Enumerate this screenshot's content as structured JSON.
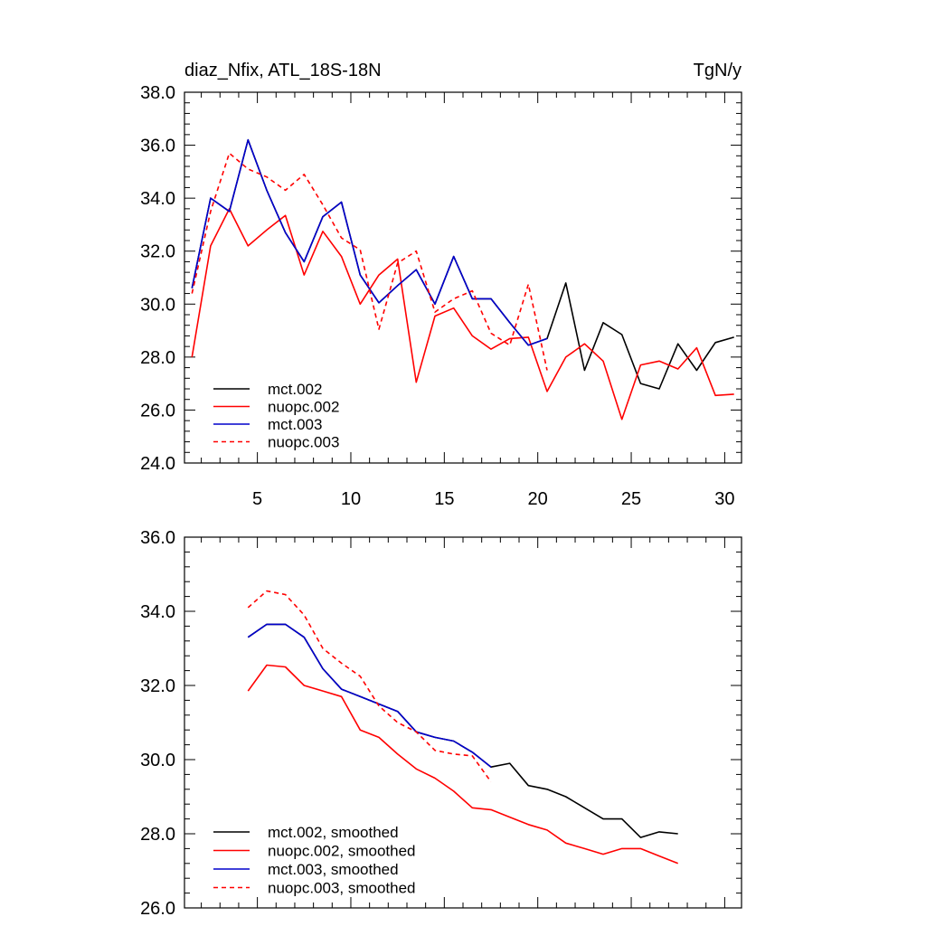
{
  "chart_data": [
    {
      "type": "line",
      "title": "diaz_Nfix, ATL_18S-18N",
      "units": "TgN/y",
      "xlim": [
        1.1,
        30.9
      ],
      "ylim": [
        24.0,
        38.0
      ],
      "xticks": [
        5,
        10,
        15,
        20,
        25,
        30
      ],
      "xtick_labels": [
        "5",
        "10",
        "15",
        "20",
        "25",
        "30"
      ],
      "yticks": [
        24,
        26,
        28,
        30,
        32,
        34,
        36,
        38
      ],
      "ytick_labels": [
        "24.0",
        "26.0",
        "28.0",
        "30.0",
        "32.0",
        "34.0",
        "36.0",
        "38.0"
      ],
      "legend_position": "bottom-left",
      "series": [
        {
          "name": "mct.002",
          "color": "#000000",
          "dash": "solid",
          "x": [
            1.5,
            2.5,
            3.5,
            4.5,
            5.5,
            6.5,
            7.5,
            8.5,
            9.5,
            10.5,
            11.5,
            12.5,
            13.5,
            14.5,
            15.5,
            16.5,
            17.5,
            18.5,
            19.5,
            20.5,
            21.5,
            22.5,
            23.5,
            24.5,
            25.5,
            26.5,
            27.5,
            28.5,
            29.5,
            30.5
          ],
          "values": [
            30.6,
            34.0,
            33.5,
            36.2,
            34.3,
            32.7,
            31.6,
            33.3,
            33.85,
            31.1,
            30.05,
            30.7,
            31.3,
            30.0,
            31.8,
            30.2,
            30.2,
            29.3,
            28.45,
            28.7,
            30.8,
            27.5,
            29.3,
            28.85,
            27.0,
            26.8,
            28.5,
            27.5,
            28.55,
            28.75
          ]
        },
        {
          "name": "nuopc.002",
          "color": "#ff0000",
          "dash": "solid",
          "x": [
            1.5,
            2.5,
            3.5,
            4.5,
            5.5,
            6.5,
            7.5,
            8.5,
            9.5,
            10.5,
            11.5,
            12.5,
            13.5,
            14.5,
            15.5,
            16.5,
            17.5,
            18.5,
            19.5,
            20.5,
            21.5,
            22.5,
            23.5,
            24.5,
            25.5,
            26.5,
            27.5,
            28.5,
            29.5,
            30.5
          ],
          "values": [
            28.0,
            32.2,
            33.6,
            32.2,
            32.8,
            33.35,
            31.1,
            32.75,
            31.8,
            30.0,
            31.1,
            31.7,
            27.05,
            29.55,
            29.85,
            28.8,
            28.3,
            28.7,
            28.75,
            26.7,
            28.0,
            28.5,
            27.85,
            25.65,
            27.7,
            27.85,
            27.55,
            28.35,
            26.55,
            26.6
          ]
        },
        {
          "name": "mct.003",
          "color": "#0000cc",
          "dash": "solid",
          "x": [
            1.5,
            2.5,
            3.5,
            4.5,
            5.5,
            6.5,
            7.5,
            8.5,
            9.5,
            10.5,
            11.5,
            12.5,
            13.5,
            14.5,
            15.5,
            16.5,
            17.5,
            18.5,
            19.5,
            20.5
          ],
          "values": [
            30.6,
            34.0,
            33.5,
            36.2,
            34.3,
            32.7,
            31.6,
            33.3,
            33.85,
            31.1,
            30.05,
            30.7,
            31.3,
            30.0,
            31.8,
            30.2,
            30.2,
            29.3,
            28.45,
            28.7
          ]
        },
        {
          "name": "nuopc.003",
          "color": "#ff0000",
          "dash": "dashed",
          "x": [
            1.5,
            2.5,
            3.5,
            4.5,
            5.5,
            6.5,
            7.5,
            8.5,
            9.5,
            10.5,
            11.5,
            12.5,
            13.5,
            14.5,
            15.5,
            16.5,
            17.5,
            18.5,
            19.5,
            20.5
          ],
          "values": [
            30.4,
            33.5,
            35.7,
            35.1,
            34.8,
            34.3,
            34.9,
            33.75,
            32.5,
            32.05,
            29.05,
            31.55,
            32.0,
            29.7,
            30.2,
            30.5,
            28.9,
            28.45,
            30.75,
            27.5
          ]
        }
      ]
    },
    {
      "type": "line",
      "title": "",
      "xlim": [
        1.1,
        30.9
      ],
      "ylim": [
        26.0,
        36.0
      ],
      "xticks": [
        5,
        10,
        15,
        20,
        25,
        30
      ],
      "xtick_labels": [
        "",
        "",
        "",
        "",
        "",
        ""
      ],
      "yticks": [
        26,
        28,
        30,
        32,
        34,
        36
      ],
      "ytick_labels": [
        "26.0",
        "28.0",
        "30.0",
        "32.0",
        "34.0",
        "36.0"
      ],
      "legend_position": "bottom-left",
      "series": [
        {
          "name": "mct.002, smoothed",
          "color": "#000000",
          "dash": "solid",
          "x": [
            4.5,
            5.5,
            6.5,
            7.5,
            8.5,
            9.5,
            10.5,
            11.5,
            12.5,
            13.5,
            14.5,
            15.5,
            16.5,
            17.5,
            18.5,
            19.5,
            20.5,
            21.5,
            22.5,
            23.5,
            24.5,
            25.5,
            26.5,
            27.5
          ],
          "values": [
            33.3,
            33.65,
            33.65,
            33.3,
            32.45,
            31.9,
            31.7,
            31.5,
            31.3,
            30.75,
            30.6,
            30.5,
            30.2,
            29.8,
            29.9,
            29.3,
            29.2,
            29.0,
            28.7,
            28.4,
            28.4,
            27.9,
            28.05,
            28.0
          ]
        },
        {
          "name": "nuopc.002, smoothed",
          "color": "#ff0000",
          "dash": "solid",
          "x": [
            4.5,
            5.5,
            6.5,
            7.5,
            8.5,
            9.5,
            10.5,
            11.5,
            12.5,
            13.5,
            14.5,
            15.5,
            16.5,
            17.5,
            18.5,
            19.5,
            20.5,
            21.5,
            22.5,
            23.5,
            24.5,
            25.5,
            26.5,
            27.5
          ],
          "values": [
            31.85,
            32.55,
            32.5,
            32.0,
            31.85,
            31.7,
            30.8,
            30.6,
            30.15,
            29.75,
            29.5,
            29.15,
            28.7,
            28.65,
            28.45,
            28.25,
            28.1,
            27.75,
            27.6,
            27.45,
            27.6,
            27.6,
            27.4,
            27.2
          ]
        },
        {
          "name": "mct.003, smoothed",
          "color": "#0000cc",
          "dash": "solid",
          "x": [
            4.5,
            5.5,
            6.5,
            7.5,
            8.5,
            9.5,
            10.5,
            11.5,
            12.5,
            13.5,
            14.5,
            15.5,
            16.5,
            17.5
          ],
          "values": [
            33.3,
            33.65,
            33.65,
            33.3,
            32.45,
            31.9,
            31.7,
            31.5,
            31.3,
            30.75,
            30.6,
            30.5,
            30.2,
            29.8
          ]
        },
        {
          "name": "nuopc.003, smoothed",
          "color": "#ff0000",
          "dash": "dashed",
          "x": [
            4.5,
            5.5,
            6.5,
            7.5,
            8.5,
            9.5,
            10.5,
            11.5,
            12.5,
            13.5,
            14.5,
            15.5,
            16.5,
            17.5
          ],
          "values": [
            34.1,
            34.55,
            34.45,
            33.9,
            33.0,
            32.6,
            32.25,
            31.45,
            31.0,
            30.75,
            30.25,
            30.15,
            30.1,
            29.4
          ]
        }
      ]
    }
  ]
}
